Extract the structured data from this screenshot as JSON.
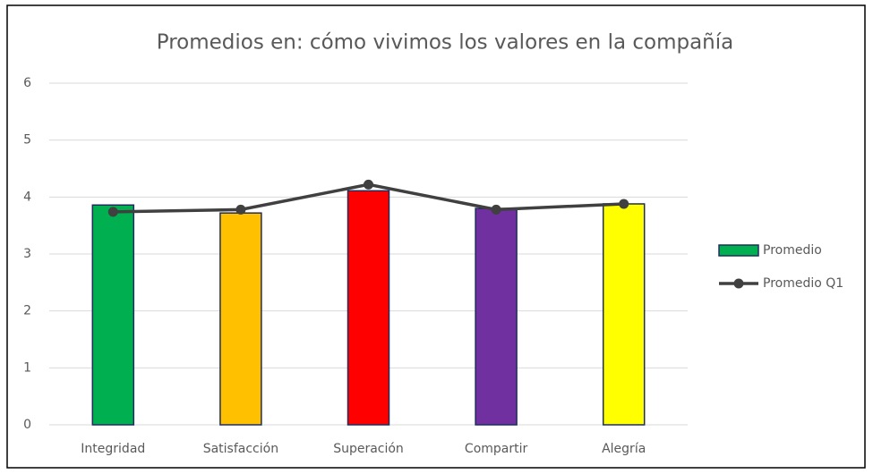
{
  "chart_data": {
    "type": "bar",
    "title": "Promedios en: cómo vivimos los valores en la compañía",
    "categories": [
      "Integridad",
      "Satisfacción",
      "Superación",
      "Compartir",
      "Alegría"
    ],
    "series": [
      {
        "name": "Promedio",
        "type": "bar",
        "color": "#00b050",
        "colors": [
          "#00b050",
          "#ffc000",
          "#ff0000",
          "#7030a0",
          "#ffff00"
        ],
        "values": [
          3.86,
          3.72,
          4.11,
          3.8,
          3.88
        ]
      },
      {
        "name": "Promedio Q1",
        "type": "line",
        "color": "#404040",
        "values": [
          3.74,
          3.78,
          4.22,
          3.78,
          3.88
        ]
      }
    ],
    "ylim": [
      0,
      6
    ],
    "yticks": [
      0,
      1,
      2,
      3,
      4,
      5,
      6
    ],
    "grid": true,
    "legend": "right"
  }
}
